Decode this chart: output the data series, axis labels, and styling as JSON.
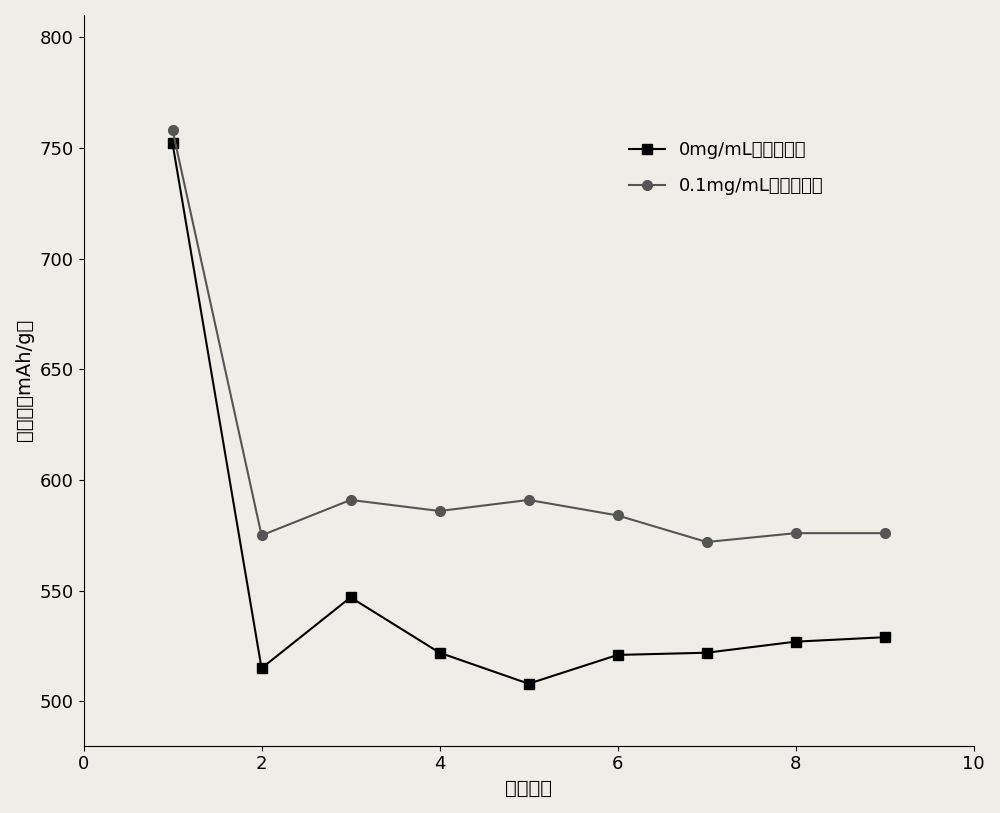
{
  "title_ylabel": "比容量（mAh/g）",
  "xlabel": "循环次数",
  "xlim": [
    0,
    10
  ],
  "ylim": [
    480,
    810
  ],
  "yticks": [
    500,
    550,
    600,
    650,
    700,
    750,
    800
  ],
  "xticks": [
    0,
    2,
    4,
    6,
    8,
    10
  ],
  "series1_label": "0mg/mL硝化苯乙烯",
  "series1_x": [
    1,
    2,
    3,
    4,
    5,
    6,
    7,
    8,
    9
  ],
  "series1_y": [
    752,
    515,
    547,
    522,
    508,
    521,
    522,
    527,
    529
  ],
  "series1_color": "#000000",
  "series1_marker": "s",
  "series2_label": "0.1mg/mL硝化苯乙烯",
  "series2_x": [
    1,
    2,
    3,
    4,
    5,
    6,
    7,
    8,
    9
  ],
  "series2_y": [
    758,
    575,
    591,
    586,
    591,
    584,
    572,
    576,
    576
  ],
  "series2_color": "#555555",
  "series2_marker": "o",
  "background_color": "#f0ece8",
  "legend_fontsize": 13,
  "axis_fontsize": 14,
  "tick_fontsize": 13
}
